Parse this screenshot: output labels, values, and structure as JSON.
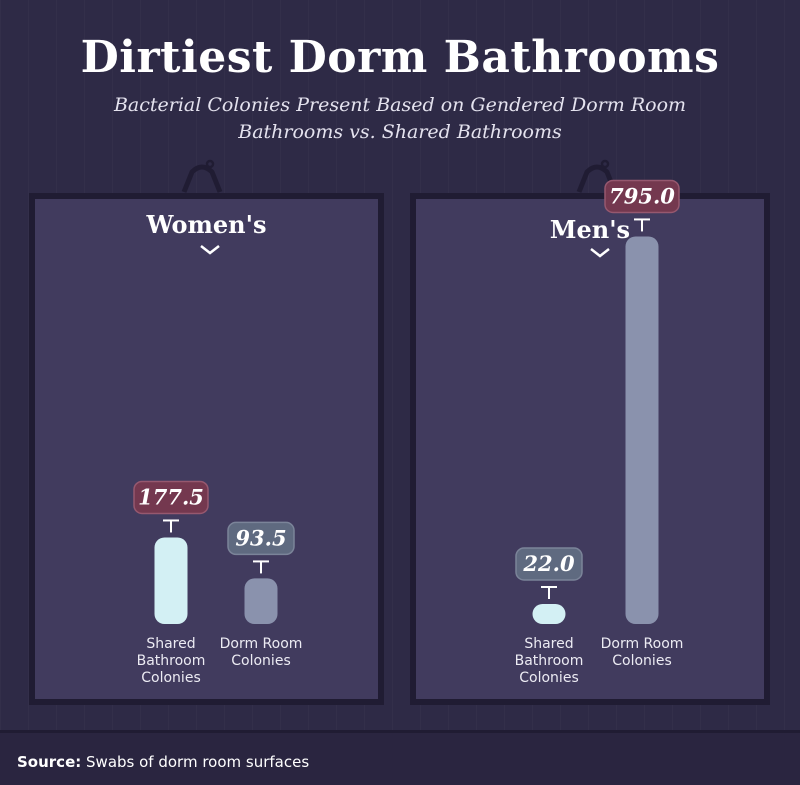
{
  "header": {
    "title": "Dirtiest Dorm Bathrooms",
    "subtitle_line1": "Bacterial Colonies Present Based on Gendered Dorm Room",
    "subtitle_line2": "Bathrooms vs. Shared Bathrooms"
  },
  "footer": {
    "source_label": "Source:",
    "source_text": "Swabs of dorm room surfaces"
  },
  "colors": {
    "shared_bar": "#d3f0f4",
    "dorm_bar": "#8a92ad",
    "highlight_label": "#74384f",
    "normal_label": "#5f6a80"
  },
  "chart_data": [
    {
      "type": "bar",
      "title": "Women's",
      "categories": [
        "Shared Bathroom Colonies",
        "Dorm Room Colonies"
      ],
      "category_lines": [
        [
          "Shared",
          "Bathroom",
          "Colonies"
        ],
        [
          "Dorm Room",
          "Colonies"
        ]
      ],
      "values": [
        177.5,
        93.5
      ],
      "value_labels": [
        "177.5",
        "93.5"
      ],
      "highlight": [
        true,
        false
      ],
      "ylim": [
        0,
        800
      ]
    },
    {
      "type": "bar",
      "title": "Men's",
      "categories": [
        "Shared Bathroom Colonies",
        "Dorm Room Colonies"
      ],
      "category_lines": [
        [
          "Shared",
          "Bathroom",
          "Colonies"
        ],
        [
          "Dorm Room",
          "Colonies"
        ]
      ],
      "values": [
        22.0,
        795.0
      ],
      "value_labels": [
        "22.0",
        "795.0"
      ],
      "highlight": [
        false,
        true
      ],
      "ylim": [
        0,
        800
      ]
    }
  ]
}
